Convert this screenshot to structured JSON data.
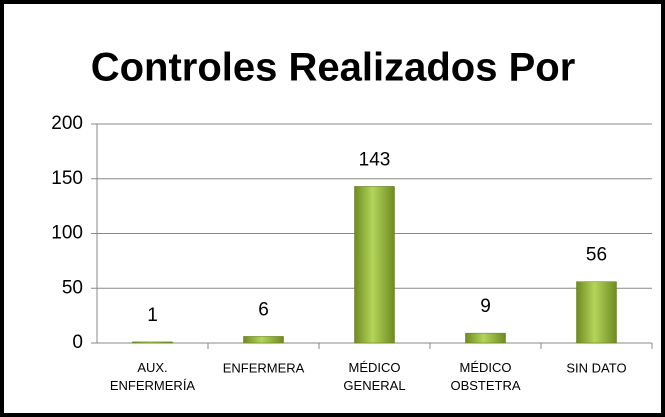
{
  "chart_data": {
    "type": "bar",
    "title": "Controles Realizados Por",
    "categories": [
      "AUX.\nENFERMERÍA",
      "ENFERMERA",
      "MÉDICO\nGENERAL",
      "MÉDICO\nOBSTETRA",
      "SIN DATO"
    ],
    "values": [
      1,
      6,
      143,
      9,
      56
    ],
    "color": "#9bbb3b",
    "ylim": [
      0,
      200
    ],
    "yticks": [
      0,
      50,
      100,
      150,
      200
    ],
    "grid": true
  }
}
